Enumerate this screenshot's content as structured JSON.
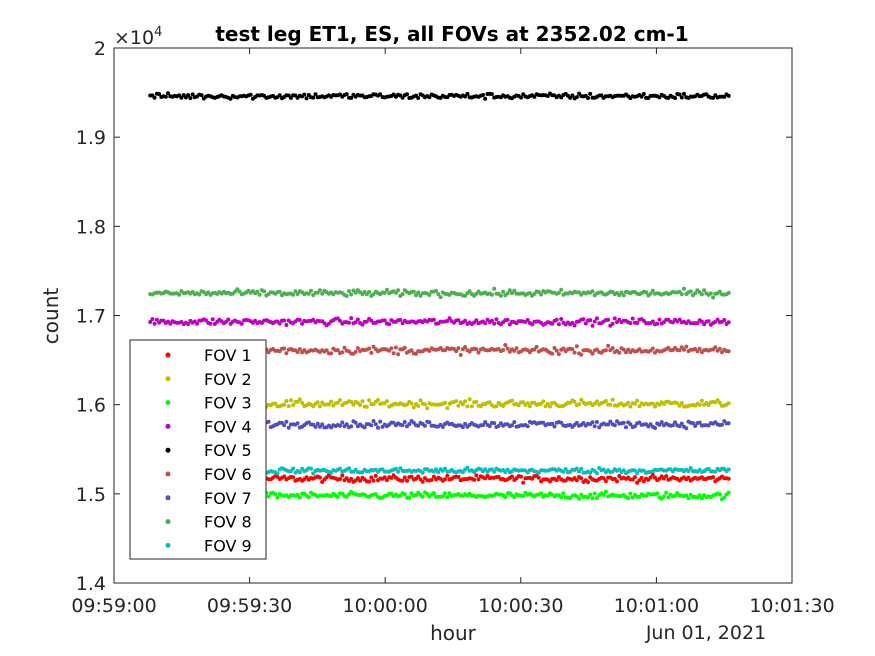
{
  "chart_data": {
    "type": "scatter",
    "title": "test leg ET1, ES, all FOVs at 2352.02 cm-1",
    "xlabel": "hour",
    "ylabel": "count",
    "y_multiplier_label": "×10",
    "y_multiplier_exponent": "4",
    "x_date_label": "Jun 01, 2021",
    "x_range_seconds": [
      "09:59:00",
      "10:01:30"
    ],
    "x_ticks": [
      "09:59:00",
      "09:59:30",
      "10:00:00",
      "10:00:30",
      "10:01:00",
      "10:01:30"
    ],
    "y_ticks": [
      "1.4",
      "1.5",
      "1.6",
      "1.7",
      "1.8",
      "1.9",
      "2"
    ],
    "ylim": [
      1.4,
      2.0
    ],
    "x_data_start": "09:59:08",
    "x_data_end": "10:01:16",
    "grid": false,
    "legend_position": "lower-left",
    "series": [
      {
        "name": "FOV 1",
        "color": "#ff0000",
        "mean": 1.517,
        "noise": 0.0035
      },
      {
        "name": "FOV 2",
        "color": "#bfbf00",
        "mean": 1.601,
        "noise": 0.004
      },
      {
        "name": "FOV 3",
        "color": "#00ff00",
        "mean": 1.498,
        "noise": 0.0035
      },
      {
        "name": "FOV 4",
        "color": "#bf00bf",
        "mean": 1.693,
        "noise": 0.0035
      },
      {
        "name": "FOV 5",
        "color": "#000000",
        "mean": 1.946,
        "noise": 0.003
      },
      {
        "name": "FOV 6",
        "color": "#c0504d",
        "mean": 1.661,
        "noise": 0.004
      },
      {
        "name": "FOV 7",
        "color": "#4f4fbf",
        "mean": 1.578,
        "noise": 0.0035
      },
      {
        "name": "FOV 8",
        "color": "#4caf50",
        "mean": 1.725,
        "noise": 0.0035
      },
      {
        "name": "FOV 9",
        "color": "#00bfbf",
        "mean": 1.526,
        "noise": 0.003
      }
    ]
  }
}
